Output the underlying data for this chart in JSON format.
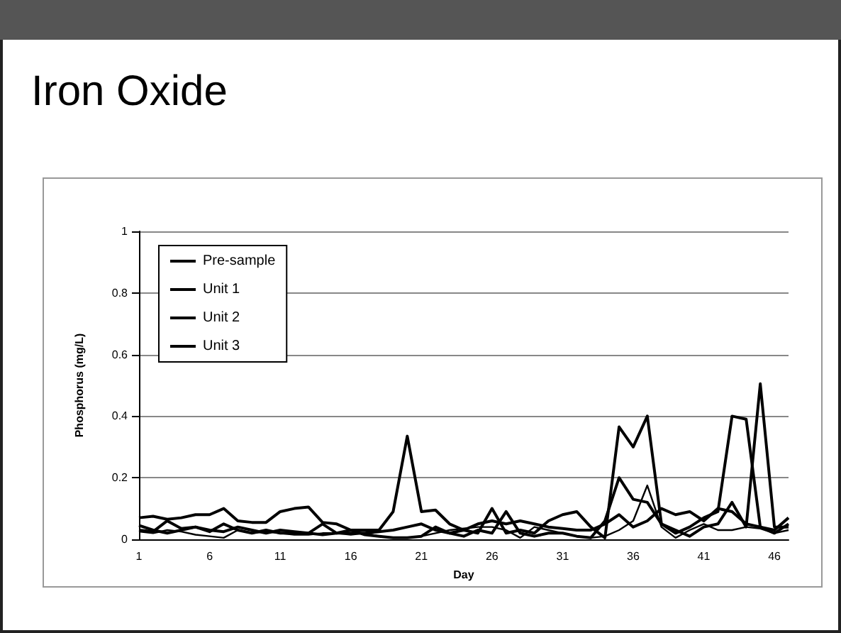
{
  "chart_data": {
    "type": "line",
    "title": "Iron Oxide",
    "xlabel": "Day",
    "ylabel": "Phosphorus (mg/L)",
    "x": [
      1,
      2,
      3,
      4,
      5,
      6,
      7,
      8,
      9,
      10,
      11,
      12,
      13,
      14,
      15,
      16,
      17,
      18,
      19,
      20,
      21,
      22,
      23,
      24,
      25,
      26,
      27,
      28,
      29,
      30,
      31,
      32,
      33,
      34,
      35,
      36,
      37,
      38,
      39,
      40,
      41,
      42,
      43,
      44,
      45,
      46,
      47
    ],
    "series": [
      {
        "name": "Pre-sample",
        "color": "#000000",
        "values": [
          0.07,
          0.075,
          0.065,
          0.07,
          0.08,
          0.08,
          0.1,
          0.06,
          0.055,
          0.055,
          0.09,
          0.1,
          0.105,
          0.055,
          0.05,
          0.03,
          0.03,
          0.03,
          0.09,
          0.335,
          0.09,
          0.095,
          0.05,
          0.03,
          0.05,
          0.06,
          0.05,
          0.06,
          0.05,
          0.04,
          0.035,
          0.03,
          0.03,
          0.05,
          0.08,
          0.04,
          0.06,
          0.1,
          0.08,
          0.09,
          0.06,
          0.1,
          0.09,
          0.05,
          0.04,
          0.03,
          0.07
        ]
      },
      {
        "name": "Unit 1",
        "color": "#000000",
        "values": [
          0.045,
          0.03,
          0.02,
          0.03,
          0.04,
          0.025,
          0.05,
          0.03,
          0.02,
          0.03,
          0.02,
          0.02,
          0.02,
          0.015,
          0.02,
          0.02,
          0.02,
          0.025,
          0.03,
          0.04,
          0.05,
          0.03,
          0.02,
          0.03,
          0.02,
          0.1,
          0.02,
          0.03,
          0.02,
          0.06,
          0.08,
          0.09,
          0.04,
          0.005,
          0.365,
          0.3,
          0.4,
          0.05,
          0.02,
          0.04,
          0.07,
          0.09,
          0.4,
          0.39,
          0.04,
          0.02,
          0.05
        ]
      },
      {
        "name": "Unit 2",
        "color": "#000000",
        "values": [
          0.03,
          0.025,
          0.06,
          0.035,
          0.04,
          0.03,
          0.025,
          0.04,
          0.03,
          0.02,
          0.03,
          0.025,
          0.02,
          0.05,
          0.02,
          0.03,
          0.015,
          0.01,
          0.005,
          0.005,
          0.01,
          0.04,
          0.02,
          0.01,
          0.03,
          0.02,
          0.09,
          0.02,
          0.01,
          0.02,
          0.02,
          0.01,
          0.005,
          0.06,
          0.2,
          0.13,
          0.12,
          0.05,
          0.03,
          0.01,
          0.04,
          0.05,
          0.12,
          0.04,
          0.505,
          0.04,
          0.04
        ]
      },
      {
        "name": "Unit 3",
        "color": "#000000",
        "values": [
          0.025,
          0.02,
          0.03,
          0.025,
          0.015,
          0.01,
          0.005,
          0.03,
          0.02,
          0.025,
          0.02,
          0.015,
          0.015,
          0.02,
          0.02,
          0.015,
          0.02,
          0.01,
          0.005,
          0.005,
          0.01,
          0.02,
          0.03,
          0.035,
          0.04,
          0.04,
          0.03,
          0.005,
          0.04,
          0.03,
          0.02,
          0.01,
          0.005,
          0.01,
          0.03,
          0.06,
          0.175,
          0.04,
          0.005,
          0.03,
          0.05,
          0.03,
          0.03,
          0.04,
          0.035,
          0.02,
          0.03
        ]
      }
    ],
    "xlim": [
      1,
      47
    ],
    "xticks": [
      1,
      6,
      11,
      16,
      21,
      26,
      31,
      36,
      41,
      46
    ],
    "ylim": [
      0,
      1
    ],
    "yticks": [
      0,
      0.2,
      0.4,
      0.6,
      0.8,
      1
    ],
    "grid": "y",
    "legend": "top left",
    "marker": "none",
    "line_style": "solid"
  }
}
